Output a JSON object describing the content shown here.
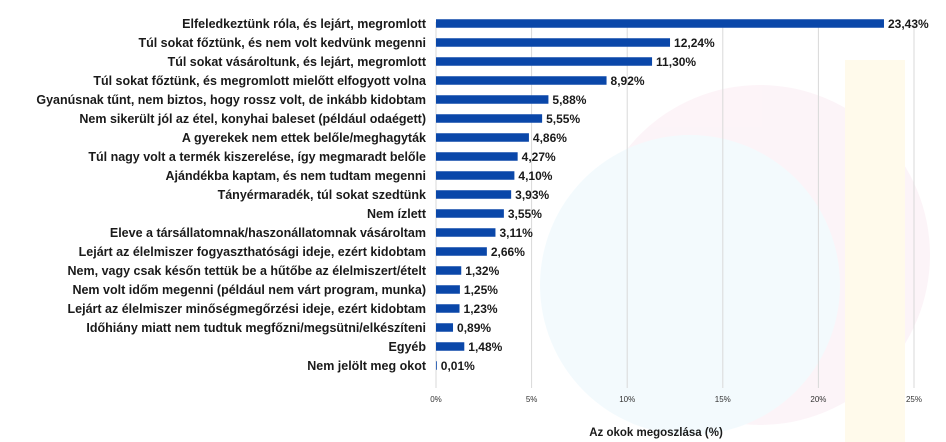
{
  "chart_data": {
    "type": "bar",
    "orientation": "horizontal",
    "categories": [
      "Elfeledkeztünk róla, és lejárt, megromlott",
      "Túl sokat főztünk, és nem volt kedvünk megenni",
      "Túl sokat vásároltunk, és lejárt, megromlott",
      "Túl sokat főztünk, és megromlott mielőtt elfogyott volna",
      "Gyanúsnak tűnt, nem biztos, hogy rossz volt, de inkább kidobtam",
      "Nem sikerült jól az étel, konyhai baleset (például odaégett)",
      "A gyerekek nem ettek belőle/meghagyták",
      "Túl nagy volt a termék kiszerelése, így megmaradt belőle",
      "Ajándékba kaptam, és nem tudtam megenni",
      "Tányérmaradék, túl sokat szedtünk",
      "Nem ízlett",
      "Eleve a társállatomnak/haszonállatomnak vásároltam",
      "Lejárt az élelmiszer fogyaszthatósági ideje, ezért kidobtam",
      "Nem, vagy csak későn tettük be a hűtőbe az élelmiszert/ételt",
      "Nem volt időm megenni (például nem várt program, munka)",
      "Lejárt az élelmiszer minőségmegőrzési ideje, ezért kidobtam",
      "Időhiány miatt nem tudtuk megfőzni/megsütni/elkészíteni",
      "Egyéb",
      "Nem jelölt meg okot"
    ],
    "values": [
      23.43,
      12.24,
      11.3,
      8.92,
      5.88,
      5.55,
      4.86,
      4.27,
      4.1,
      3.93,
      3.55,
      3.11,
      2.66,
      1.32,
      1.25,
      1.23,
      0.89,
      1.48,
      0.01
    ],
    "value_labels": [
      "23,43%",
      "12,24%",
      "11,30%",
      "8,92%",
      "5,88%",
      "5,55%",
      "4,86%",
      "4,27%",
      "4,10%",
      "3,93%",
      "3,55%",
      "3,11%",
      "2,66%",
      "1,32%",
      "1,25%",
      "1,23%",
      "0,89%",
      "1,48%",
      "0,01%"
    ],
    "xlim": [
      0,
      25
    ],
    "xticks": [
      0,
      5,
      10,
      15,
      20,
      25
    ],
    "xtick_labels": [
      "0%",
      "5%",
      "10%",
      "15%",
      "20%",
      "25%"
    ],
    "xlabel": "Az okok megoszlása (%)",
    "grid": true,
    "legend": "none",
    "bar_color": "#0a47a9"
  }
}
